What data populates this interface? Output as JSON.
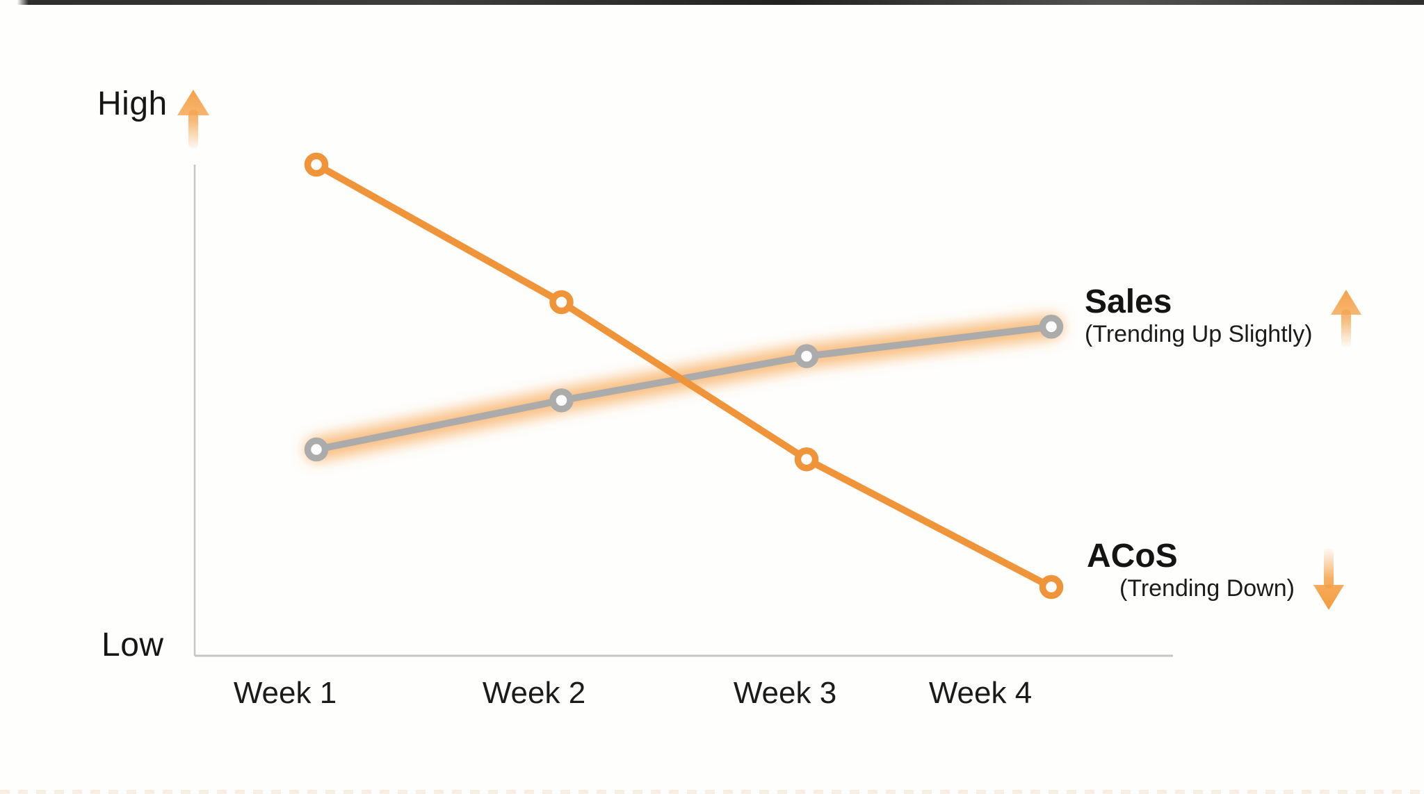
{
  "colors": {
    "orange": "#F0943A",
    "gray": "#ABABAB",
    "glow_orange": "#F6A348",
    "arrow_orange": "#F5A14C",
    "axis_gray": "#C6C6C6",
    "text": "#1B1B1B"
  },
  "chart_data": {
    "type": "line",
    "title": "",
    "x": [
      "Week 1",
      "Week 2",
      "Week 3",
      "Week 4"
    ],
    "y_axis": {
      "high_label": "High",
      "low_label": "Low",
      "range": [
        0,
        100
      ],
      "numeric_ticks": false
    },
    "grid": false,
    "legend_position": "inline-right-annotations",
    "series": [
      {
        "name": "Sales",
        "subtitle": "(Trending Up Slightly)",
        "trend": "up",
        "color": "#ABABAB",
        "glow_color": "#F6A348",
        "values": [
          42,
          52,
          61,
          67
        ]
      },
      {
        "name": "ACoS",
        "subtitle": "(Trending Down)",
        "trend": "down",
        "color": "#F0943A",
        "glow_color": null,
        "values": [
          100,
          72,
          40,
          14
        ]
      }
    ]
  }
}
